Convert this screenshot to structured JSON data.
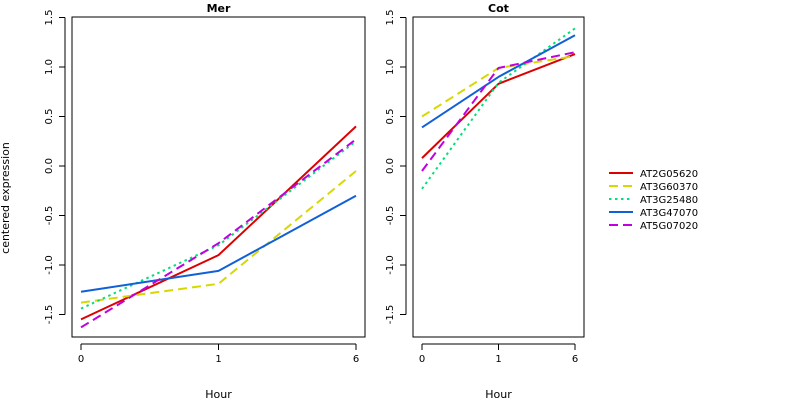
{
  "chart_data": {
    "type": "line",
    "ylabel": "centered expression",
    "legend_position": "right",
    "series_styles": [
      {
        "name": "AT2G05620",
        "color": "#DD0000",
        "dash": "solid"
      },
      {
        "name": "AT3G60370",
        "color": "#D8D800",
        "dash": "dashed"
      },
      {
        "name": "AT3G25480",
        "color": "#00E07A",
        "dash": "dotted"
      },
      {
        "name": "AT3G47070",
        "color": "#1060D8",
        "dash": "solid"
      },
      {
        "name": "AT5G07020",
        "color": "#C000E0",
        "dash": "dashed"
      }
    ],
    "panels": [
      {
        "title": "Mer",
        "xlabel": "Hour",
        "categories": [
          "0",
          "1",
          "6"
        ],
        "ylim": [
          -1.6,
          1.5
        ],
        "yticks": [
          "-1.5",
          "-1.0",
          "-0.5",
          "0.0",
          "0.5",
          "1.0",
          "1.5"
        ],
        "series": [
          {
            "name": "AT2G05620",
            "values": [
              -1.55,
              -0.9,
              0.4
            ]
          },
          {
            "name": "AT3G60370",
            "values": [
              -1.38,
              -1.19,
              -0.05
            ]
          },
          {
            "name": "AT3G25480",
            "values": [
              -1.44,
              -0.8,
              0.25
            ]
          },
          {
            "name": "AT3G47070",
            "values": [
              -1.27,
              -1.06,
              -0.3
            ]
          },
          {
            "name": "AT5G07020",
            "values": [
              -1.63,
              -0.78,
              0.27
            ]
          }
        ]
      },
      {
        "title": "Cot",
        "xlabel": "Hour",
        "categories": [
          "0",
          "1",
          "6"
        ],
        "ylim": [
          -1.6,
          1.5
        ],
        "yticks": [
          "-1.5",
          "-1.0",
          "-0.5",
          "0.0",
          "0.5",
          "1.0",
          "1.5"
        ],
        "series": [
          {
            "name": "AT2G05620",
            "values": [
              0.08,
              0.83,
              1.13
            ]
          },
          {
            "name": "AT3G60370",
            "values": [
              0.5,
              0.99,
              1.11
            ]
          },
          {
            "name": "AT3G25480",
            "values": [
              -0.23,
              0.84,
              1.39
            ]
          },
          {
            "name": "AT3G47070",
            "values": [
              0.39,
              0.9,
              1.32
            ]
          },
          {
            "name": "AT5G07020",
            "values": [
              -0.05,
              0.99,
              1.15
            ]
          }
        ]
      }
    ]
  }
}
